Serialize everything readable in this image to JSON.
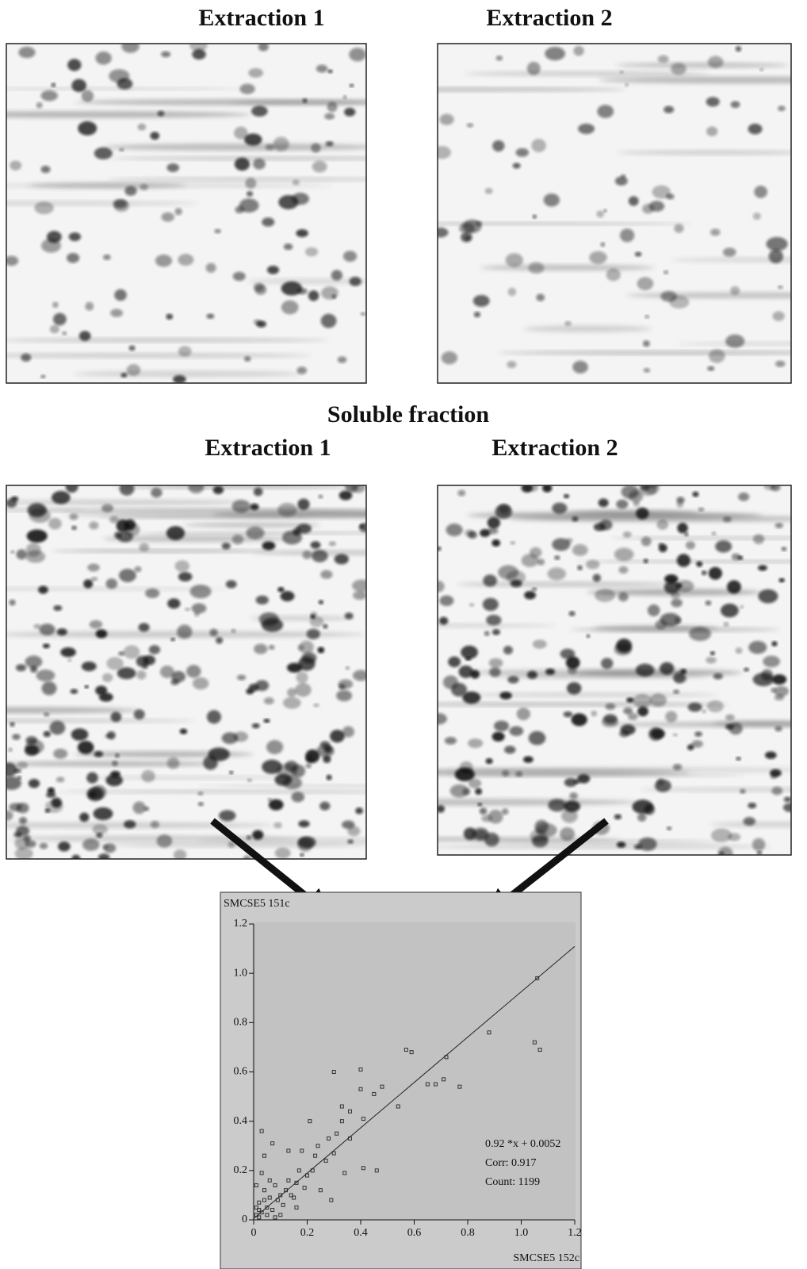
{
  "headings": {
    "top": [
      "Extraction 1",
      "Extraction 2"
    ],
    "section_title": "Soluble fraction",
    "middle": [
      "Extraction 1",
      "Extraction 2"
    ]
  },
  "chart_data": {
    "type": "scatter",
    "y_label": "SMCSE5 151c",
    "x_label": "SMCSE5 152c",
    "annotations": [
      "0.92 *x + 0.0052",
      "Corr: 0.917",
      "Count: 1199"
    ],
    "fit": {
      "slope": 0.92,
      "intercept": 0.0052
    },
    "color": "#333333",
    "xlim": [
      0,
      1.2
    ],
    "ylim": [
      0,
      1.2
    ],
    "xticks": [
      0,
      0.2,
      0.4,
      0.6,
      0.8,
      {
        "value": 1,
        "label": "1.0"
      },
      1.2
    ],
    "yticks": [
      0,
      0.2,
      0.4,
      0.6,
      0.8,
      {
        "value": 1,
        "label": "1.0"
      },
      1.2
    ],
    "x": [
      1.06,
      0.88,
      1.05,
      1.07,
      0.57,
      0.59,
      0.72,
      0.3,
      0.4,
      0.4,
      0.48,
      0.65,
      0.68,
      0.71,
      0.77,
      0.45,
      0.54,
      0.33,
      0.36,
      0.21,
      0.03,
      0.33,
      0.41,
      0.36,
      0.28,
      0.31,
      0.24,
      0.18,
      0.13,
      0.07,
      0.04,
      0.46,
      0.41,
      0.34,
      0.29,
      0.25,
      0.22,
      0.2,
      0.16,
      0.17,
      0.12,
      0.1,
      0.08,
      0.06,
      0.05,
      0.04,
      0.03,
      0.02,
      0.01,
      0.02,
      0.07,
      0.09,
      0.11,
      0.14,
      0.13,
      0.19,
      0.15,
      0.06,
      0.01,
      0.03,
      0.1,
      0.16,
      0.08,
      0.27,
      0.23,
      0.3,
      0.01,
      0.04,
      0.05,
      0.02
    ],
    "values": [
      0.98,
      0.76,
      0.72,
      0.69,
      0.69,
      0.68,
      0.66,
      0.6,
      0.61,
      0.53,
      0.54,
      0.55,
      0.55,
      0.57,
      0.54,
      0.51,
      0.46,
      0.46,
      0.44,
      0.4,
      0.36,
      0.4,
      0.41,
      0.33,
      0.33,
      0.35,
      0.3,
      0.28,
      0.28,
      0.31,
      0.26,
      0.2,
      0.21,
      0.19,
      0.08,
      0.12,
      0.2,
      0.18,
      0.15,
      0.2,
      0.12,
      0.1,
      0.14,
      0.09,
      0.05,
      0.12,
      0.03,
      0.07,
      0.02,
      0.01,
      0.04,
      0.08,
      0.06,
      0.1,
      0.16,
      0.13,
      0.09,
      0.16,
      0.14,
      0.19,
      0.02,
      0.05,
      0.01,
      0.24,
      0.26,
      0.27,
      0.05,
      0.08,
      0.02,
      0.04
    ]
  }
}
